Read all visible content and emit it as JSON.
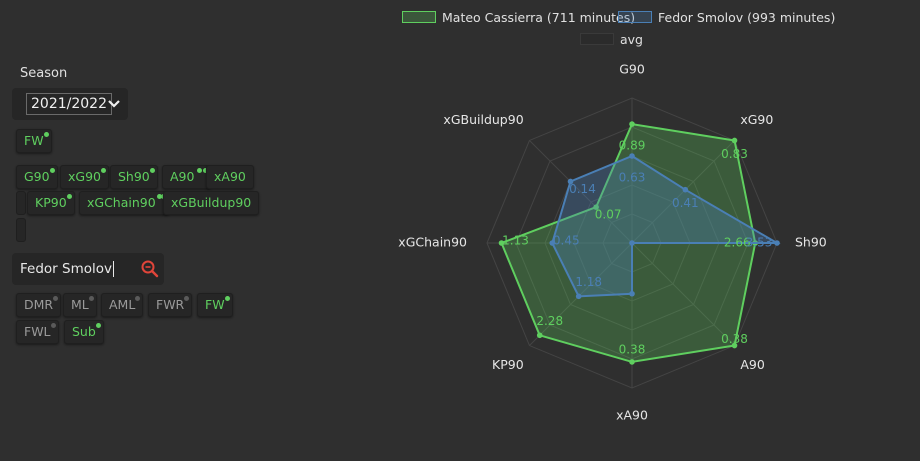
{
  "season": {
    "label": "Season",
    "value": "2021/2022"
  },
  "position_group": [
    "FW"
  ],
  "metric_chips": [
    "G90",
    "xG90",
    "Sh90",
    "A90",
    "xA90",
    "KP90",
    "xGChain90",
    "xGBuildup90"
  ],
  "search": {
    "value": "Fedor Smolov"
  },
  "position_filters": [
    "DMR",
    "ML",
    "AML",
    "FWR",
    "FW",
    "FWL",
    "Sub"
  ],
  "colors": {
    "player_a": "#5fcf5f",
    "player_b": "#4a7fb5",
    "background": "#2f2f2f",
    "search_icon": "#e0453a"
  },
  "legend": {
    "player_a": "Mateo Cassierra (711 minutes)",
    "player_b": "Fedor Smolov (993 minutes)",
    "avg": "avg"
  },
  "chart_data": {
    "type": "radar",
    "axes": [
      "G90",
      "xG90",
      "Sh90",
      "A90",
      "xA90",
      "KP90",
      "xGChain90",
      "xGBuildup90"
    ],
    "series": [
      {
        "name": "Mateo Cassierra (711 minutes)",
        "values": [
          0.89,
          0.83,
          2.66,
          0.38,
          0.38,
          2.28,
          1.13,
          0.07
        ],
        "normalized": [
          0.82,
          1.0,
          0.85,
          1.0,
          0.82,
          0.9,
          0.9,
          0.35
        ],
        "value_labels": [
          "0.89",
          "0.83",
          "2.66",
          "0.38",
          "0.38",
          "2.28",
          "1.13",
          "0.07"
        ]
      },
      {
        "name": "Fedor Smolov (993 minutes)",
        "values": [
          0.63,
          0.41,
          3.53,
          0.11,
          0.11,
          1.18,
          0.45,
          0.14
        ],
        "normalized": [
          0.6,
          0.52,
          1.0,
          0.0,
          0.35,
          0.52,
          0.55,
          0.6
        ],
        "value_labels": [
          "0.63",
          "0.41",
          "3.53",
          "",
          "",
          "1.18",
          "0.45",
          "0.14"
        ]
      }
    ],
    "grid": true
  }
}
